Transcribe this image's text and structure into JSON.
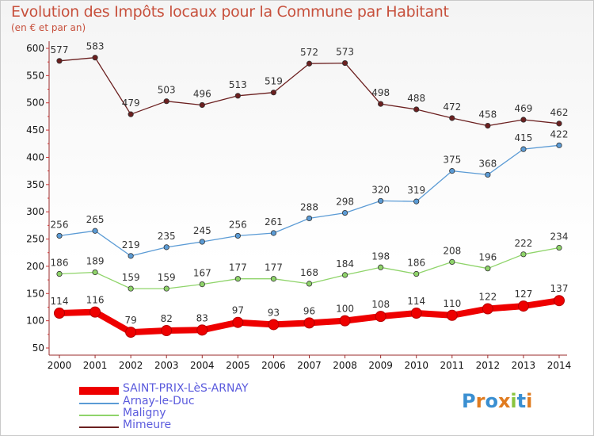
{
  "header": {
    "title": "Evolution des Impôts locaux pour la Commune par Habitant",
    "subtitle": "(en € et par an)"
  },
  "logo": {
    "text": "Proxiti",
    "colors": [
      "#3a8fd1",
      "#e07b1f",
      "#3a8fd1",
      "#e07b1f",
      "#8ac43f",
      "#3a8fd1",
      "#e07b1f"
    ]
  },
  "chart_data": {
    "type": "line",
    "categories": [
      "2000",
      "2001",
      "2002",
      "2003",
      "2004",
      "2005",
      "2006",
      "2007",
      "2008",
      "2009",
      "2010",
      "2011",
      "2012",
      "2013",
      "2014"
    ],
    "ylim": [
      50,
      600
    ],
    "yticks": [
      50,
      100,
      150,
      200,
      250,
      300,
      350,
      400,
      450,
      500,
      550,
      600
    ],
    "grid": false,
    "legend_position": "bottom-left",
    "series": [
      {
        "name": "SAINT-PRIX-LèS-ARNAY",
        "color": "#ee0000",
        "emphasis": true,
        "values": [
          114,
          116,
          79,
          82,
          83,
          97,
          93,
          96,
          100,
          108,
          114,
          110,
          122,
          127,
          137
        ]
      },
      {
        "name": "Arnay-le-Duc",
        "color": "#5b9bd5",
        "emphasis": false,
        "values": [
          256,
          265,
          219,
          235,
          245,
          256,
          261,
          288,
          298,
          320,
          319,
          375,
          368,
          415,
          422
        ]
      },
      {
        "name": "Maligny",
        "color": "#8fd46a",
        "emphasis": false,
        "values": [
          186,
          189,
          159,
          159,
          167,
          177,
          177,
          168,
          184,
          198,
          186,
          208,
          196,
          222,
          234
        ]
      },
      {
        "name": "Mimeure",
        "color": "#6b1f1f",
        "emphasis": false,
        "values": [
          577,
          583,
          479,
          503,
          496,
          513,
          519,
          572,
          573,
          498,
          488,
          472,
          458,
          469,
          462
        ]
      }
    ]
  }
}
